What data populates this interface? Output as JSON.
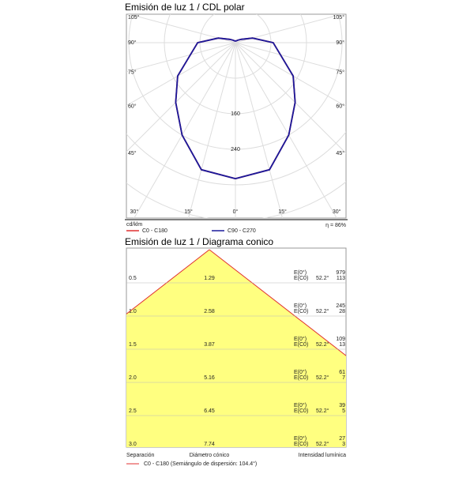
{
  "chart_data": [
    {
      "type": "polar",
      "title": "Emisión de luz 1 / CDL polar",
      "unit": "cd/klm",
      "efficiency": "η = 86%",
      "angle_ticks": [
        {
          "value": 105,
          "label": "105°"
        },
        {
          "value": 90,
          "label": "90°"
        },
        {
          "value": 75,
          "label": "75°"
        },
        {
          "value": 60,
          "label": "60°"
        },
        {
          "value": 45,
          "label": "45°"
        },
        {
          "value": 30,
          "label": "30°"
        },
        {
          "value": 15,
          "label": "15°"
        },
        {
          "value": 0,
          "label": "0°"
        }
      ],
      "rlim": [
        0,
        400
      ],
      "rticks": [
        160,
        240
      ],
      "rgrid": [
        80,
        160,
        240,
        320,
        400
      ],
      "angles": [
        0,
        15,
        30,
        45,
        60,
        75,
        90,
        105,
        120,
        135,
        150,
        165,
        180
      ],
      "series": [
        {
          "name": "C0 - C180",
          "color": "#e03030",
          "values": [
            306,
            296,
            240,
            190,
            150,
            105,
            85,
            40,
            15,
            8,
            5,
            4,
            4
          ]
        },
        {
          "name": "C90 - C270",
          "color": "#1a1a9c",
          "values": [
            306,
            296,
            240,
            190,
            150,
            105,
            85,
            40,
            15,
            8,
            5,
            4,
            4
          ]
        }
      ]
    },
    {
      "type": "cone",
      "title": "Emisión de luz 1 / Diagrama conico",
      "column_labels": [
        "Separación",
        "Diámetro cónico",
        "Intensidad lumínica"
      ],
      "separation": [
        0.5,
        {
          "value": 1,
          "label": "1.0"
        },
        1.5,
        {
          "value": 2,
          "label": "2.0"
        },
        2.5,
        {
          "value": 3,
          "label": "3.0"
        }
      ],
      "diameter": [
        1.29,
        2.58,
        3.87,
        5.16,
        6.45,
        7.74
      ],
      "e0_label": "E(0°)",
      "ec0_label": "E(C0)",
      "angle": {
        "value": 52.2,
        "label": "52.2°"
      },
      "e0": [
        979,
        245,
        109,
        61,
        39,
        27
      ],
      "ec0": [
        113,
        28,
        13,
        7,
        5,
        3
      ],
      "legend": "C0 - C180 (Semiángulo de dispersión: 104.4°)",
      "color": "#e03030",
      "fill": "#ffff80"
    }
  ]
}
